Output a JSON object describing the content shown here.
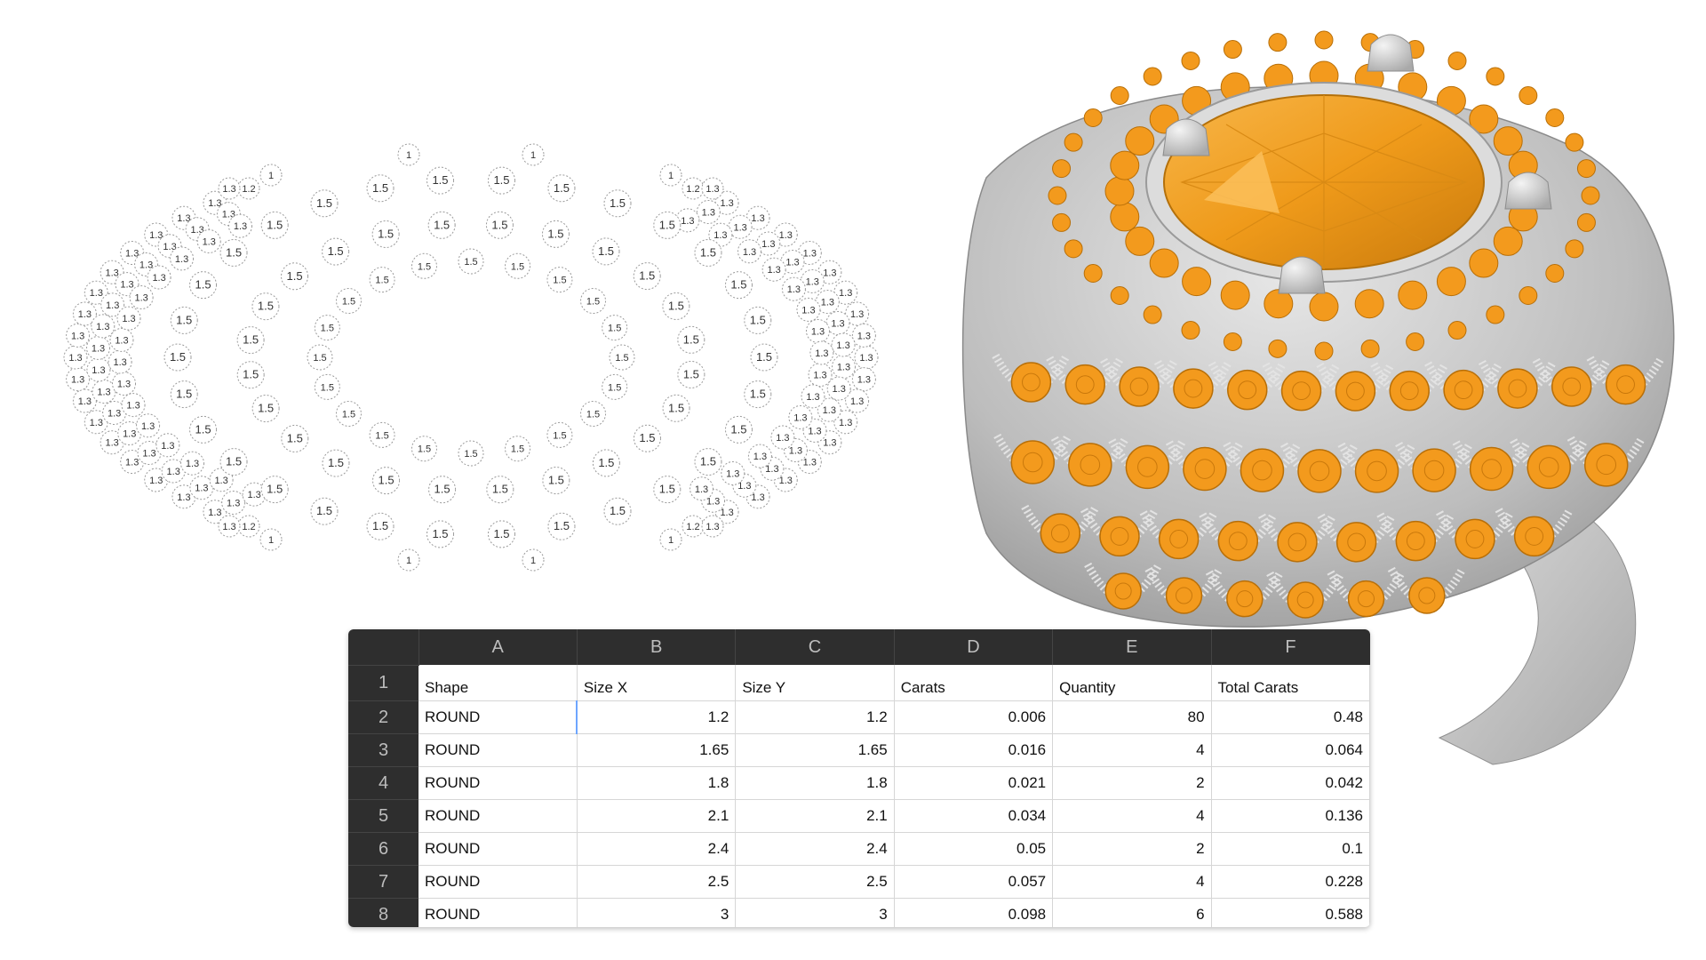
{
  "spreadsheet": {
    "columns": [
      "A",
      "B",
      "C",
      "D",
      "E",
      "F"
    ],
    "row_numbers": [
      "1",
      "2",
      "3",
      "4",
      "5",
      "6",
      "7",
      "8"
    ],
    "header": [
      "Shape",
      "Size X",
      "Size Y",
      "Carats",
      "Quantity",
      "Total Carats"
    ],
    "rows": [
      [
        "ROUND",
        "1.2",
        "1.2",
        "0.006",
        "80",
        "0.48"
      ],
      [
        "ROUND",
        "1.65",
        "1.65",
        "0.016",
        "4",
        "0.064"
      ],
      [
        "ROUND",
        "1.8",
        "1.8",
        "0.021",
        "2",
        "0.042"
      ],
      [
        "ROUND",
        "2.1",
        "2.1",
        "0.034",
        "4",
        "0.136"
      ],
      [
        "ROUND",
        "2.4",
        "2.4",
        "0.05",
        "2",
        "0.1"
      ],
      [
        "ROUND",
        "2.5",
        "2.5",
        "0.057",
        "4",
        "0.228"
      ],
      [
        "ROUND",
        "3",
        "3",
        "0.098",
        "6",
        "0.588"
      ]
    ]
  },
  "stone_map": {
    "labels": [
      "1",
      "1.2",
      "1.3",
      "1.5"
    ]
  },
  "ring_render": {
    "metal_color": "#cfcfcf",
    "gem_color": "#f39a1d"
  }
}
